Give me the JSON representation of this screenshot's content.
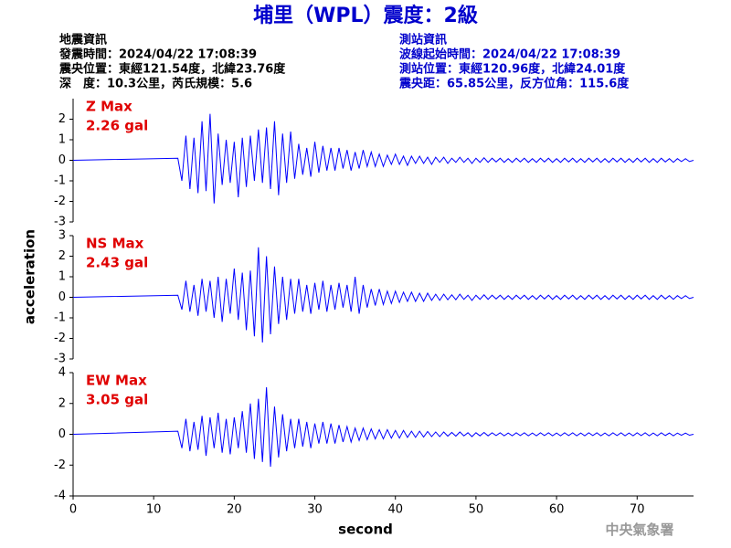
{
  "header": {
    "title": "埔里（WPL）震度：2級",
    "left": [
      "地震資訊",
      "發震時間：2024/04/22 17:08:39",
      "震央位置：東經121.54度，北緯23.76度",
      "深　度：10.3公里，芮氏規模：5.6"
    ],
    "right": [
      "測站資訊",
      "波線起始時間：2024/04/22 17:08:39",
      "測站位置：東經120.96度，北緯24.01度",
      "震央距：65.85公里，反方位角：115.6度"
    ]
  },
  "footer": "中央氣象署",
  "chart_data": [
    {
      "type": "line",
      "annotations": [
        "Z Max",
        "2.26 gal"
      ],
      "xlim": [
        0,
        77
      ],
      "ylim": [
        -3,
        3
      ],
      "yticks": [
        -3,
        -2,
        -1,
        0,
        1,
        2
      ],
      "x": [
        0,
        13,
        13.5,
        14,
        14.5,
        15,
        15.5,
        16,
        16.5,
        17,
        17.5,
        18,
        18.5,
        19,
        19.5,
        20,
        20.5,
        21,
        21.5,
        22,
        22.5,
        23,
        23.5,
        24,
        24.5,
        25,
        25.5,
        26,
        26.5,
        27,
        27.5,
        28,
        28.5,
        29,
        29.5,
        30,
        30.5,
        31,
        31.5,
        32,
        32.5,
        33,
        33.5,
        34,
        34.5,
        35,
        35.5,
        36,
        36.5,
        37,
        37.5,
        38,
        38.5,
        39,
        39.5,
        40,
        40.5,
        41,
        41.5,
        42,
        42.5,
        43,
        43.5,
        44,
        44.5,
        45,
        45.5,
        46,
        46.5,
        47,
        47.5,
        48,
        48.5,
        49,
        49.5,
        50,
        50.5,
        51,
        51.5,
        52,
        52.5,
        53,
        53.5,
        54,
        54.5,
        55,
        55.5,
        56,
        56.5,
        57,
        57.5,
        58,
        58.5,
        59,
        59.5,
        60,
        60.5,
        61,
        61.5,
        62,
        62.5,
        63,
        63.5,
        64,
        64.5,
        65,
        65.5,
        66,
        66.5,
        67,
        67.5,
        68,
        68.5,
        69,
        69.5,
        70,
        70.5,
        71,
        71.5,
        72,
        72.5,
        73,
        73.5,
        74,
        74.5,
        75,
        75.5,
        76,
        76.5,
        77
      ],
      "series": [
        {
          "color": "#0000ff",
          "values": [
            0,
            0.1,
            -1.0,
            1.2,
            -1.4,
            1.1,
            -1.6,
            1.9,
            -1.5,
            2.26,
            -2.1,
            1.3,
            -1.2,
            1.0,
            -1.1,
            0.9,
            -1.8,
            1.1,
            -1.3,
            1.2,
            -1.0,
            1.5,
            -1.1,
            1.6,
            -1.4,
            1.9,
            -1.7,
            1.3,
            -1.1,
            1.4,
            -0.9,
            0.8,
            -0.7,
            0.6,
            -0.8,
            0.9,
            -0.6,
            0.7,
            -0.5,
            0.6,
            -0.5,
            0.6,
            -0.4,
            0.5,
            -0.5,
            0.4,
            -0.4,
            0.5,
            -0.3,
            0.4,
            -0.3,
            0.3,
            -0.3,
            0.25,
            -0.2,
            0.3,
            -0.2,
            0.2,
            -0.25,
            0.2,
            -0.15,
            0.2,
            -0.15,
            0.15,
            -0.2,
            0.15,
            -0.1,
            0.15,
            -0.15,
            0.1,
            -0.1,
            0.15,
            -0.1,
            0.1,
            -0.15,
            0.1,
            -0.1,
            0.12,
            -0.1,
            0.1,
            -0.08,
            0.1,
            -0.1,
            0.08,
            -0.1,
            0.1,
            -0.08,
            0.1,
            -0.1,
            0.08,
            -0.1,
            0.1,
            -0.08,
            0.1,
            -0.1,
            0.08,
            -0.1,
            0.1,
            -0.08,
            0.1,
            -0.1,
            0.08,
            -0.1,
            0.1,
            -0.08,
            0.1,
            -0.1,
            0.08,
            -0.1,
            0.1,
            -0.08,
            0.1,
            -0.1,
            0.08,
            -0.1,
            0.1,
            -0.08,
            0.1,
            -0.1,
            0.08,
            -0.1,
            0.1,
            -0.08,
            0.08,
            -0.1,
            0.08,
            -0.06,
            0.08,
            -0.06,
            0
          ]
        }
      ]
    },
    {
      "type": "line",
      "annotations": [
        "NS Max",
        "2.43 gal"
      ],
      "ylabel": "acceleration",
      "xlim": [
        0,
        77
      ],
      "ylim": [
        -3,
        3
      ],
      "yticks": [
        -3,
        -2,
        -1,
        0,
        1,
        2,
        3
      ],
      "x": [
        0,
        13,
        13.5,
        14,
        14.5,
        15,
        15.5,
        16,
        16.5,
        17,
        17.5,
        18,
        18.5,
        19,
        19.5,
        20,
        20.5,
        21,
        21.5,
        22,
        22.5,
        23,
        23.5,
        24,
        24.5,
        25,
        25.5,
        26,
        26.5,
        27,
        27.5,
        28,
        28.5,
        29,
        29.5,
        30,
        30.5,
        31,
        31.5,
        32,
        32.5,
        33,
        33.5,
        34,
        34.5,
        35,
        35.5,
        36,
        36.5,
        37,
        37.5,
        38,
        38.5,
        39,
        39.5,
        40,
        40.5,
        41,
        41.5,
        42,
        42.5,
        43,
        43.5,
        44,
        44.5,
        45,
        45.5,
        46,
        46.5,
        47,
        47.5,
        48,
        48.5,
        49,
        49.5,
        50,
        50.5,
        51,
        51.5,
        52,
        52.5,
        53,
        53.5,
        54,
        54.5,
        55,
        55.5,
        56,
        56.5,
        57,
        57.5,
        58,
        58.5,
        59,
        59.5,
        60,
        60.5,
        61,
        61.5,
        62,
        62.5,
        63,
        63.5,
        64,
        64.5,
        65,
        65.5,
        66,
        66.5,
        67,
        67.5,
        68,
        68.5,
        69,
        69.5,
        70,
        70.5,
        71,
        71.5,
        72,
        72.5,
        73,
        73.5,
        74,
        74.5,
        75,
        75.5,
        76,
        76.5,
        77
      ],
      "series": [
        {
          "color": "#0000ff",
          "values": [
            0,
            0.1,
            -0.6,
            0.8,
            -0.7,
            0.6,
            -0.9,
            0.9,
            -0.7,
            0.8,
            -1.0,
            1.0,
            -1.2,
            0.9,
            -0.8,
            1.4,
            -1.1,
            1.2,
            -1.6,
            1.3,
            -1.9,
            2.43,
            -2.2,
            2.0,
            -1.8,
            1.5,
            -1.3,
            1.0,
            -1.1,
            0.9,
            -0.8,
            0.9,
            -0.7,
            0.6,
            -0.8,
            0.7,
            -0.6,
            0.8,
            -0.7,
            0.6,
            -0.6,
            0.7,
            -0.5,
            0.6,
            -0.7,
            1.0,
            -0.8,
            0.6,
            -0.5,
            0.4,
            -0.4,
            0.4,
            -0.35,
            0.3,
            -0.3,
            0.3,
            -0.25,
            0.25,
            -0.2,
            0.25,
            -0.2,
            0.2,
            -0.2,
            0.2,
            -0.15,
            0.15,
            -0.15,
            0.15,
            -0.12,
            0.12,
            -0.12,
            0.15,
            -0.1,
            0.1,
            -0.15,
            0.1,
            -0.1,
            0.12,
            -0.1,
            0.1,
            -0.08,
            0.1,
            -0.1,
            0.08,
            -0.1,
            0.1,
            -0.08,
            0.1,
            -0.1,
            0.08,
            -0.1,
            0.1,
            -0.08,
            0.1,
            -0.1,
            0.08,
            -0.1,
            0.1,
            -0.08,
            0.1,
            -0.1,
            0.08,
            -0.1,
            0.1,
            -0.08,
            0.1,
            -0.1,
            0.08,
            -0.1,
            0.1,
            -0.08,
            0.1,
            -0.1,
            0.08,
            -0.1,
            0.1,
            -0.08,
            0.1,
            -0.1,
            0.08,
            -0.1,
            0.1,
            -0.08,
            0.08,
            -0.1,
            0.08,
            -0.06,
            0.08,
            -0.06,
            0
          ]
        }
      ]
    },
    {
      "type": "line",
      "annotations": [
        "EW Max",
        "3.05 gal"
      ],
      "xlabel": "second",
      "xlim": [
        0,
        77
      ],
      "xticks": [
        0,
        10,
        20,
        30,
        40,
        50,
        60,
        70
      ],
      "ylim": [
        -4,
        4
      ],
      "yticks": [
        -4,
        -2,
        0,
        2,
        4
      ],
      "x": [
        0,
        13,
        13.5,
        14,
        14.5,
        15,
        15.5,
        16,
        16.5,
        17,
        17.5,
        18,
        18.5,
        19,
        19.5,
        20,
        20.5,
        21,
        21.5,
        22,
        22.5,
        23,
        23.5,
        24,
        24.5,
        25,
        25.5,
        26,
        26.5,
        27,
        27.5,
        28,
        28.5,
        29,
        29.5,
        30,
        30.5,
        31,
        31.5,
        32,
        32.5,
        33,
        33.5,
        34,
        34.5,
        35,
        35.5,
        36,
        36.5,
        37,
        37.5,
        38,
        38.5,
        39,
        39.5,
        40,
        40.5,
        41,
        41.5,
        42,
        42.5,
        43,
        43.5,
        44,
        44.5,
        45,
        45.5,
        46,
        46.5,
        47,
        47.5,
        48,
        48.5,
        49,
        49.5,
        50,
        50.5,
        51,
        51.5,
        52,
        52.5,
        53,
        53.5,
        54,
        54.5,
        55,
        55.5,
        56,
        56.5,
        57,
        57.5,
        58,
        58.5,
        59,
        59.5,
        60,
        60.5,
        61,
        61.5,
        62,
        62.5,
        63,
        63.5,
        64,
        64.5,
        65,
        65.5,
        66,
        66.5,
        67,
        67.5,
        68,
        68.5,
        69,
        69.5,
        70,
        70.5,
        71,
        71.5,
        72,
        72.5,
        73,
        73.5,
        74,
        74.5,
        75,
        75.5,
        76,
        76.5,
        77
      ],
      "series": [
        {
          "color": "#0000ff",
          "values": [
            0,
            0.2,
            -0.9,
            1.0,
            -1.1,
            0.8,
            -1.0,
            1.2,
            -1.4,
            1.1,
            -0.9,
            1.4,
            -1.2,
            1.0,
            -1.3,
            1.1,
            -0.9,
            1.5,
            -1.2,
            2.0,
            -1.6,
            2.3,
            -1.8,
            3.05,
            -2.1,
            1.8,
            -1.5,
            1.3,
            -1.1,
            1.0,
            -0.9,
            1.0,
            -0.8,
            0.8,
            -0.9,
            0.7,
            -0.6,
            0.8,
            -0.6,
            0.7,
            -0.6,
            0.6,
            -0.5,
            0.5,
            -0.5,
            0.4,
            -0.4,
            0.4,
            -0.35,
            0.35,
            -0.3,
            0.3,
            -0.3,
            0.3,
            -0.25,
            0.25,
            -0.25,
            0.25,
            -0.2,
            0.2,
            -0.2,
            0.2,
            -0.18,
            0.18,
            -0.15,
            0.15,
            -0.15,
            0.15,
            -0.12,
            0.12,
            -0.12,
            0.15,
            -0.1,
            0.1,
            -0.15,
            0.1,
            -0.1,
            0.12,
            -0.1,
            0.1,
            -0.08,
            0.1,
            -0.1,
            0.08,
            -0.1,
            0.1,
            -0.08,
            0.1,
            -0.1,
            0.08,
            -0.1,
            0.1,
            -0.08,
            0.1,
            -0.1,
            0.08,
            -0.1,
            0.1,
            -0.08,
            0.1,
            -0.1,
            0.08,
            -0.1,
            0.1,
            -0.08,
            0.1,
            -0.1,
            0.08,
            -0.1,
            0.1,
            -0.08,
            0.1,
            -0.1,
            0.08,
            -0.1,
            0.1,
            -0.08,
            0.1,
            -0.1,
            0.08,
            -0.1,
            0.1,
            -0.08,
            0.08,
            -0.1,
            0.08,
            -0.06,
            0.08,
            -0.06,
            0
          ]
        }
      ]
    }
  ]
}
